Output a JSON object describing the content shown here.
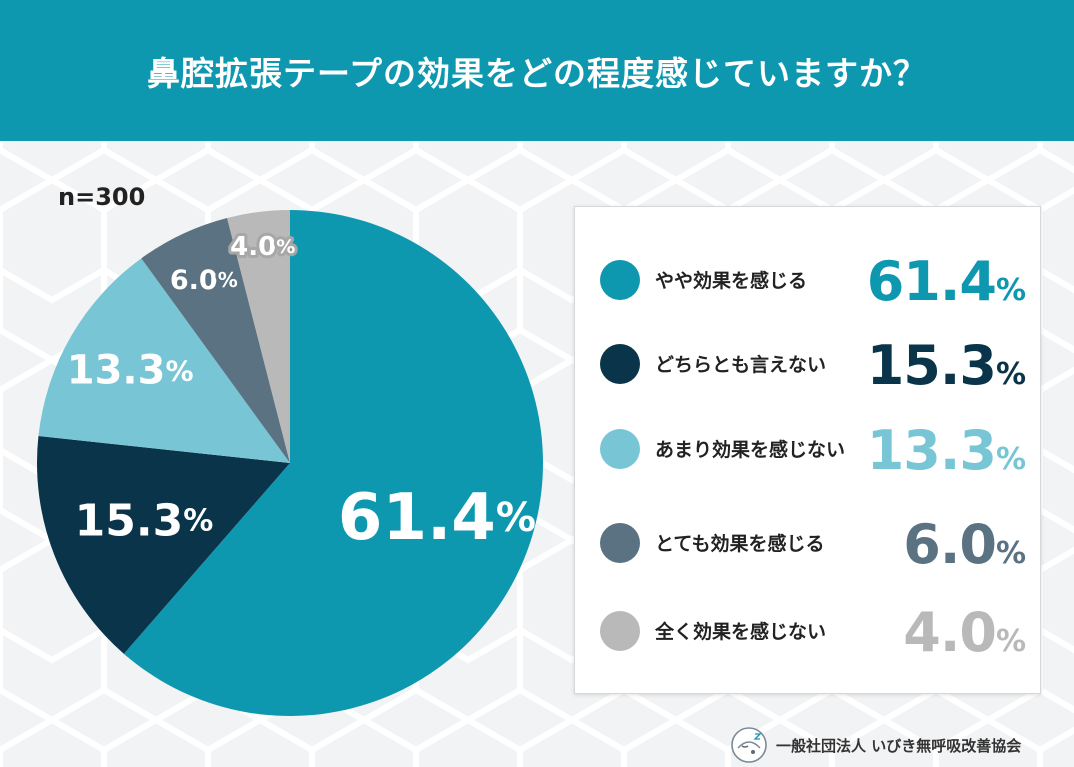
{
  "header": {
    "title": "鼻腔拡張テープの効果をどの程度感じていますか？"
  },
  "sample_size": "n=300",
  "percent_sign": "%",
  "organization": "一般社団法人 いびき無呼吸改善協会",
  "chart_data": {
    "type": "pie",
    "title": "鼻腔拡張テープの効果をどの程度感じていますか？",
    "slices": [
      {
        "label": "やや効果を感じる",
        "value": 61.4,
        "value_text": "61.4",
        "color": "#0e98b0"
      },
      {
        "label": "どちらとも言えない",
        "value": 15.3,
        "value_text": "15.3",
        "color": "#09344a"
      },
      {
        "label": "あまり効果を感じない",
        "value": 13.3,
        "value_text": "13.3",
        "color": "#78c6d5"
      },
      {
        "label": "とても効果を感じる",
        "value": 6.0,
        "value_text": "6.0",
        "color": "#5a7282"
      },
      {
        "label": "全く効果を感じない",
        "value": 4.0,
        "value_text": "4.0",
        "color": "#b9b9b9"
      }
    ]
  }
}
